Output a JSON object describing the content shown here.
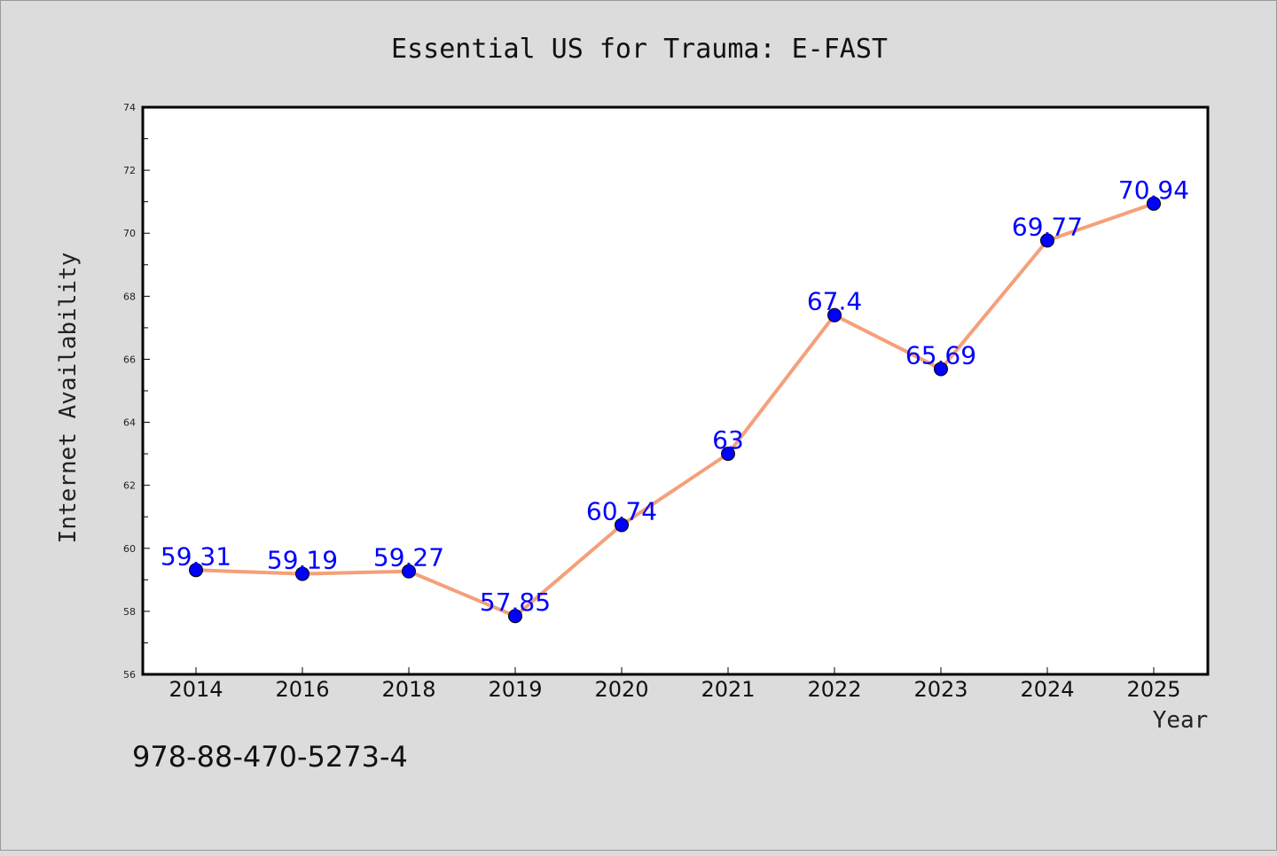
{
  "footer_text": "978-88-470-5273-4",
  "chart_data": {
    "type": "line",
    "title": "Essential US for Trauma: E-FAST",
    "xlabel": "Year",
    "ylabel": "Internet Availability",
    "categories": [
      "2014",
      "2016",
      "2018",
      "2019",
      "2020",
      "2021",
      "2022",
      "2023",
      "2024",
      "2025"
    ],
    "values": [
      59.31,
      59.19,
      59.27,
      57.85,
      60.74,
      63,
      67.4,
      65.69,
      69.77,
      70.94
    ],
    "data_labels": [
      "59.31",
      "59.19",
      "59.27",
      "57.85",
      "60.74",
      "63",
      "67.4",
      "65.69",
      "69.77",
      "70.94"
    ],
    "ylim": [
      56,
      74
    ],
    "yticks": [
      "56",
      "58",
      "60",
      "62",
      "64",
      "66",
      "68",
      "70",
      "72",
      "74"
    ],
    "grid": false,
    "colors": {
      "line": "#f4a07a",
      "marker": "#0000ff",
      "data_label": "#0000ff",
      "plot_background": "#ffffff",
      "page_background": "#dcdcdc"
    }
  }
}
